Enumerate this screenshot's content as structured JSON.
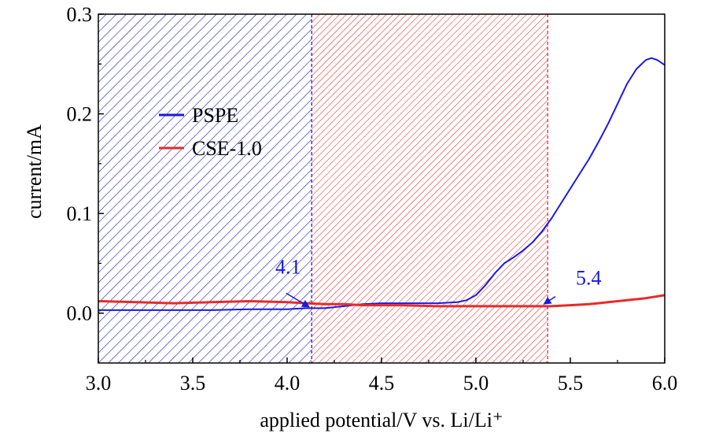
{
  "chart_data": {
    "type": "line",
    "title": "",
    "xlabel": "applied potential/V vs. Li/Li⁺",
    "ylabel": "current/mA",
    "xlim": [
      3.0,
      6.0
    ],
    "ylim": [
      -0.05,
      0.3
    ],
    "x_ticks": [
      "3.0",
      "3.5",
      "4.0",
      "4.5",
      "5.0",
      "5.5",
      "6.0"
    ],
    "y_ticks": [
      "0.0",
      "0.1",
      "0.2",
      "0.3"
    ],
    "legend_position": "upper-left",
    "grid": false,
    "series": [
      {
        "name": "PSPE",
        "color": "#1a1adc",
        "x": [
          3.0,
          3.2,
          3.4,
          3.6,
          3.8,
          4.0,
          4.1,
          4.2,
          4.3,
          4.4,
          4.5,
          4.6,
          4.7,
          4.8,
          4.9,
          4.95,
          5.0,
          5.05,
          5.1,
          5.15,
          5.2,
          5.25,
          5.3,
          5.35,
          5.4,
          5.45,
          5.5,
          5.55,
          5.6,
          5.65,
          5.7,
          5.75,
          5.8,
          5.85,
          5.9,
          5.93,
          5.96,
          6.0
        ],
        "y": [
          0.003,
          0.003,
          0.003,
          0.003,
          0.004,
          0.004,
          0.005,
          0.005,
          0.007,
          0.009,
          0.01,
          0.01,
          0.01,
          0.01,
          0.011,
          0.013,
          0.018,
          0.028,
          0.04,
          0.05,
          0.056,
          0.063,
          0.071,
          0.082,
          0.095,
          0.11,
          0.125,
          0.14,
          0.155,
          0.172,
          0.19,
          0.21,
          0.23,
          0.245,
          0.254,
          0.256,
          0.254,
          0.249
        ]
      },
      {
        "name": "CSE-1.0",
        "color": "#e82a2a",
        "x": [
          3.0,
          3.2,
          3.4,
          3.6,
          3.8,
          4.0,
          4.1,
          4.2,
          4.3,
          4.4,
          4.5,
          4.6,
          4.8,
          5.0,
          5.2,
          5.4,
          5.5,
          5.6,
          5.7,
          5.8,
          5.9,
          6.0
        ],
        "y": [
          0.012,
          0.011,
          0.01,
          0.011,
          0.012,
          0.011,
          0.01,
          0.009,
          0.009,
          0.008,
          0.008,
          0.008,
          0.007,
          0.007,
          0.007,
          0.007,
          0.008,
          0.009,
          0.011,
          0.013,
          0.015,
          0.018
        ]
      }
    ],
    "shaded_regions": [
      {
        "from": 3.0,
        "to": 4.13,
        "color": "#1a1adc"
      },
      {
        "from": 4.13,
        "to": 5.38,
        "color": "#e82a2a"
      }
    ],
    "annotations": [
      {
        "text": "4.1",
        "x": 4.13,
        "y": 0.005,
        "color": "#1a1adc"
      },
      {
        "text": "5.4",
        "x": 5.38,
        "y": 0.008,
        "color": "#1a1adc"
      }
    ]
  }
}
